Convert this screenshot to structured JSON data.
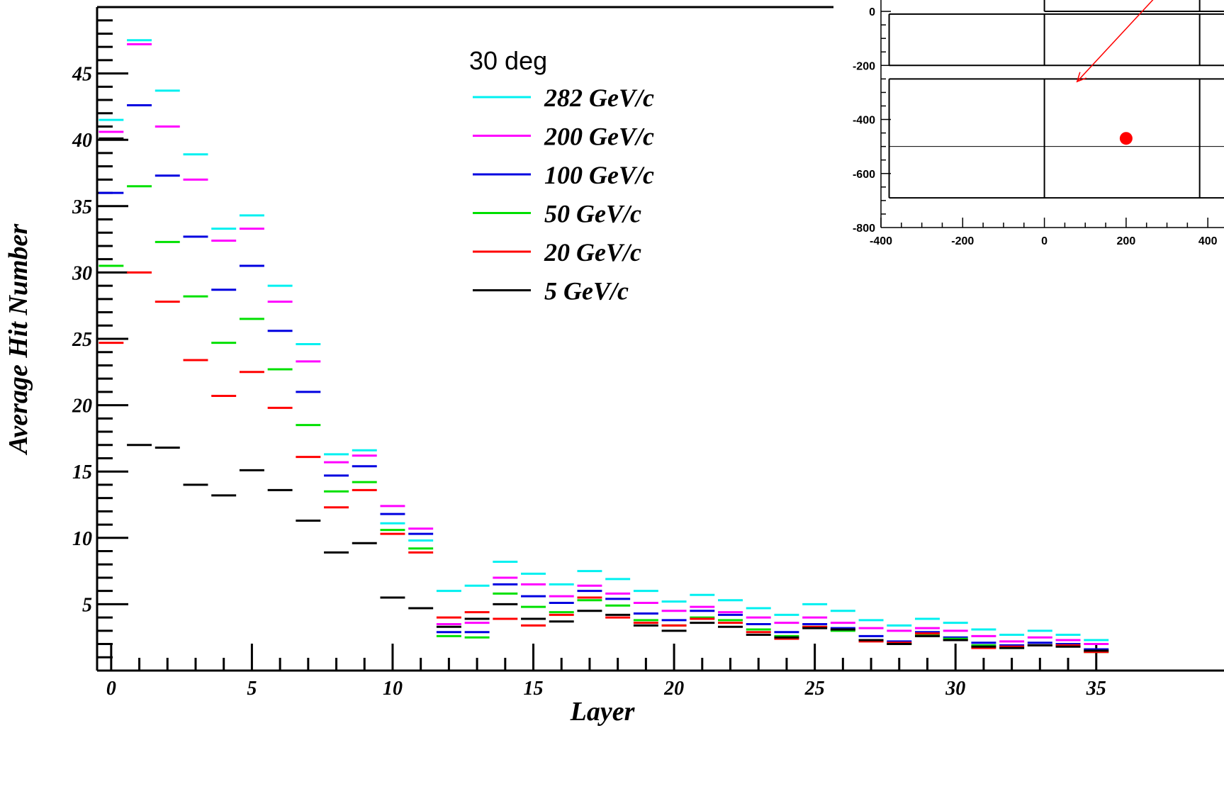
{
  "chart_data": [
    {
      "type": "line",
      "xlabel": "Layer",
      "ylabel": "Average Hit Number",
      "xlim": [
        -0.5,
        35.5
      ],
      "ylim": [
        0,
        50
      ],
      "x_ticks": [
        "0",
        "5",
        "10",
        "15",
        "20",
        "25",
        "30",
        "35"
      ],
      "y_ticks": [
        "5",
        "10",
        "15",
        "20",
        "25",
        "30",
        "35",
        "40",
        "45"
      ],
      "legend_title": "30 deg",
      "legend_position": "top-center",
      "x": [
        0,
        1,
        2,
        3,
        4,
        5,
        6,
        7,
        8,
        9,
        10,
        11,
        12,
        13,
        14,
        15,
        16,
        17,
        18,
        19,
        20,
        21,
        22,
        23,
        24,
        25,
        26,
        27,
        28,
        29,
        30,
        31,
        32,
        33,
        34,
        35
      ],
      "series": [
        {
          "name": "282 GeV/c",
          "color": "#00f0f0",
          "values": [
            41.5,
            47.5,
            43.7,
            38.9,
            33.3,
            34.3,
            29.0,
            24.6,
            16.3,
            16.6,
            11.1,
            9.8,
            6.0,
            6.4,
            8.2,
            7.3,
            6.5,
            7.5,
            6.9,
            6.0,
            5.2,
            5.7,
            5.3,
            4.7,
            4.2,
            5.0,
            4.5,
            3.8,
            3.4,
            3.9,
            3.6,
            3.1,
            2.7,
            3.0,
            2.7,
            2.3
          ]
        },
        {
          "name": "200 GeV/c",
          "color": "#ff00ff",
          "values": [
            40.6,
            47.2,
            41.0,
            37.0,
            32.4,
            33.3,
            27.8,
            23.3,
            15.7,
            16.2,
            12.4,
            10.7,
            3.5,
            3.6,
            7.0,
            6.5,
            5.6,
            6.4,
            5.8,
            5.1,
            4.5,
            4.8,
            4.4,
            4.0,
            3.6,
            4.0,
            3.6,
            3.2,
            3.0,
            3.2,
            3.0,
            2.6,
            2.2,
            2.5,
            2.3,
            2.0
          ]
        },
        {
          "name": "100 GeV/c",
          "color": "#0000e0",
          "values": [
            36.0,
            42.6,
            37.3,
            32.7,
            28.7,
            30.5,
            25.6,
            21.0,
            14.7,
            15.4,
            11.8,
            10.3,
            2.9,
            2.9,
            6.5,
            5.6,
            5.1,
            6.0,
            5.4,
            4.3,
            3.8,
            4.5,
            4.2,
            3.5,
            2.9,
            3.5,
            3.2,
            2.6,
            2.2,
            2.9,
            2.5,
            2.1,
            1.9,
            2.1,
            2.0,
            1.6
          ]
        },
        {
          "name": "50 GeV/c",
          "color": "#00e000",
          "values": [
            30.5,
            36.5,
            32.3,
            28.2,
            24.7,
            26.5,
            22.7,
            18.5,
            13.5,
            14.2,
            10.6,
            9.2,
            2.6,
            2.5,
            5.8,
            4.8,
            4.4,
            5.3,
            4.9,
            3.8,
            3.4,
            4.0,
            3.8,
            3.1,
            2.6,
            3.3,
            3.0,
            2.3,
            2.0,
            2.7,
            2.4,
            1.9,
            1.7,
            1.9,
            1.9,
            1.4
          ]
        },
        {
          "name": "20 GeV/c",
          "color": "#ff0000",
          "values": [
            24.7,
            30.0,
            27.8,
            23.4,
            20.7,
            22.5,
            19.8,
            16.1,
            12.3,
            13.6,
            10.3,
            8.9,
            4.0,
            4.4,
            3.9,
            3.4,
            4.2,
            5.5,
            4.0,
            3.6,
            3.4,
            3.9,
            3.6,
            2.9,
            2.4,
            3.3,
            3.1,
            2.2,
            2.1,
            2.8,
            2.3,
            1.7,
            1.8,
            1.9,
            1.9,
            1.4
          ]
        },
        {
          "name": "5 GeV/c",
          "color": "#000000",
          "values": [
            40.1,
            17.0,
            16.8,
            14.0,
            13.2,
            15.1,
            13.6,
            11.3,
            8.9,
            9.6,
            5.5,
            4.7,
            3.3,
            3.9,
            5.0,
            3.9,
            3.7,
            4.5,
            4.2,
            3.4,
            3.0,
            3.6,
            3.3,
            2.7,
            2.5,
            3.2,
            3.1,
            2.3,
            2.0,
            2.6,
            2.3,
            1.8,
            1.7,
            1.9,
            1.8,
            1.5
          ]
        }
      ]
    },
    {
      "type": "scatter",
      "x_ticks": [
        "-400",
        "-200",
        "0",
        "200",
        "400"
      ],
      "y_ticks": [
        "0",
        "-200",
        "-400",
        "-600",
        "-800"
      ],
      "xlim": [
        -400,
        450
      ],
      "ylim": [
        -800,
        50
      ],
      "points": [
        {
          "x": 200,
          "y": -470
        }
      ],
      "point_color": "#ff0000",
      "arrow_color": "#ff0000",
      "arrow_from": [
        270,
        50
      ],
      "arrow_to": [
        80,
        -260
      ],
      "cell_rows": [
        {
          "y_top": 50,
          "y_bottom": 0
        },
        {
          "y_top": -10,
          "y_bottom": -200
        },
        {
          "y_top": -250,
          "y_bottom": -690
        }
      ],
      "cell_x_edges": [
        -380,
        0,
        380
      ],
      "inner_hline_y": -500
    }
  ]
}
